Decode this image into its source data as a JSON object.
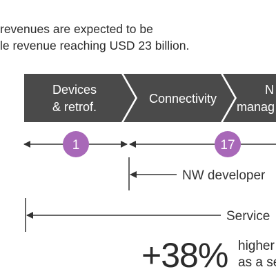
{
  "intro": {
    "line1": "revenues are expected to be",
    "line2": "le revenue reaching USD 23 billion."
  },
  "segments": [
    {
      "line1": "Devices",
      "line2": "& retrof."
    },
    {
      "line1": "Connectivity",
      "line2": ""
    },
    {
      "line1": "N",
      "line2": "manag"
    }
  ],
  "bubbles": [
    "1",
    "17"
  ],
  "ranges": {
    "developer": "NW developer",
    "service": "Service"
  },
  "stat": {
    "value": "+38%",
    "line1": "higher",
    "line2": "as a se"
  },
  "colors": {
    "bar": "#4a4a4a",
    "bubble": "#a868b8",
    "line": "#333333"
  }
}
